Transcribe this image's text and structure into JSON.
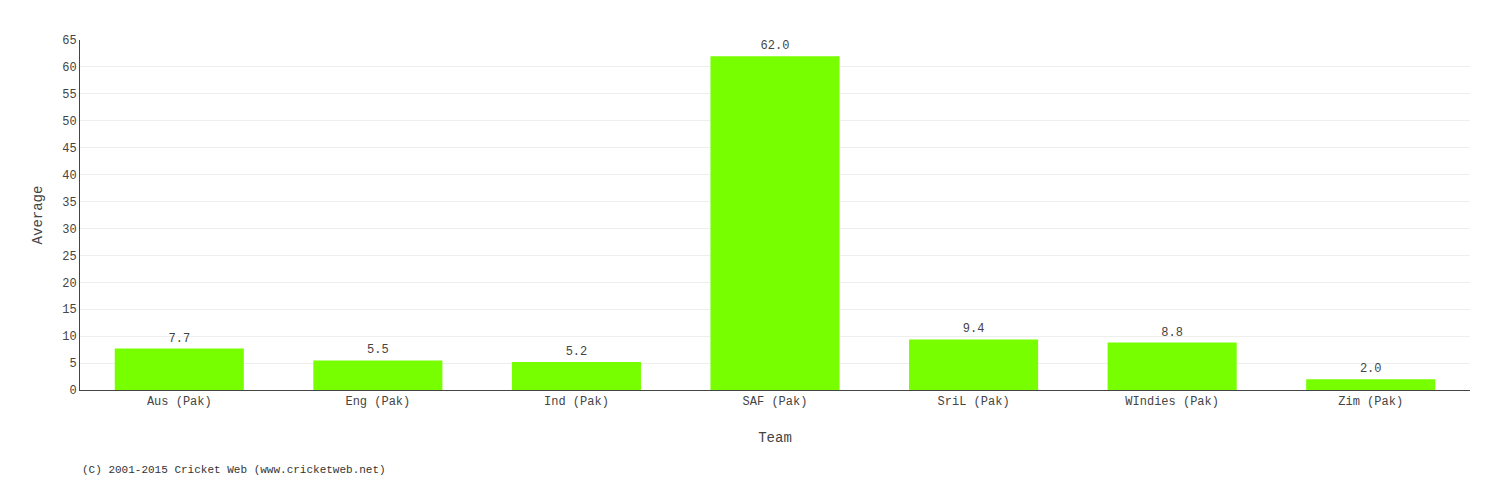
{
  "chart_data": {
    "type": "bar",
    "xlabel": "Team",
    "ylabel": "Average",
    "categories": [
      "Aus (Pak)",
      "Eng (Pak)",
      "Ind (Pak)",
      "SAF (Pak)",
      "SriL (Pak)",
      "WIndies (Pak)",
      "Zim (Pak)"
    ],
    "values": [
      7.7,
      5.5,
      5.2,
      62.0,
      9.4,
      8.8,
      2.0
    ],
    "value_labels": [
      "7.7",
      "5.5",
      "5.2",
      "62.0",
      "9.4",
      "8.8",
      "2.0"
    ],
    "data_labels": true,
    "color": "#77ff00",
    "ylim": [
      0,
      65
    ],
    "yticks": [
      0,
      5,
      10,
      15,
      20,
      25,
      30,
      35,
      40,
      45,
      50,
      55,
      60,
      65
    ],
    "grid": true,
    "annotations": [
      "(C) 2001-2015 Cricket Web (www.cricketweb.net)"
    ]
  }
}
